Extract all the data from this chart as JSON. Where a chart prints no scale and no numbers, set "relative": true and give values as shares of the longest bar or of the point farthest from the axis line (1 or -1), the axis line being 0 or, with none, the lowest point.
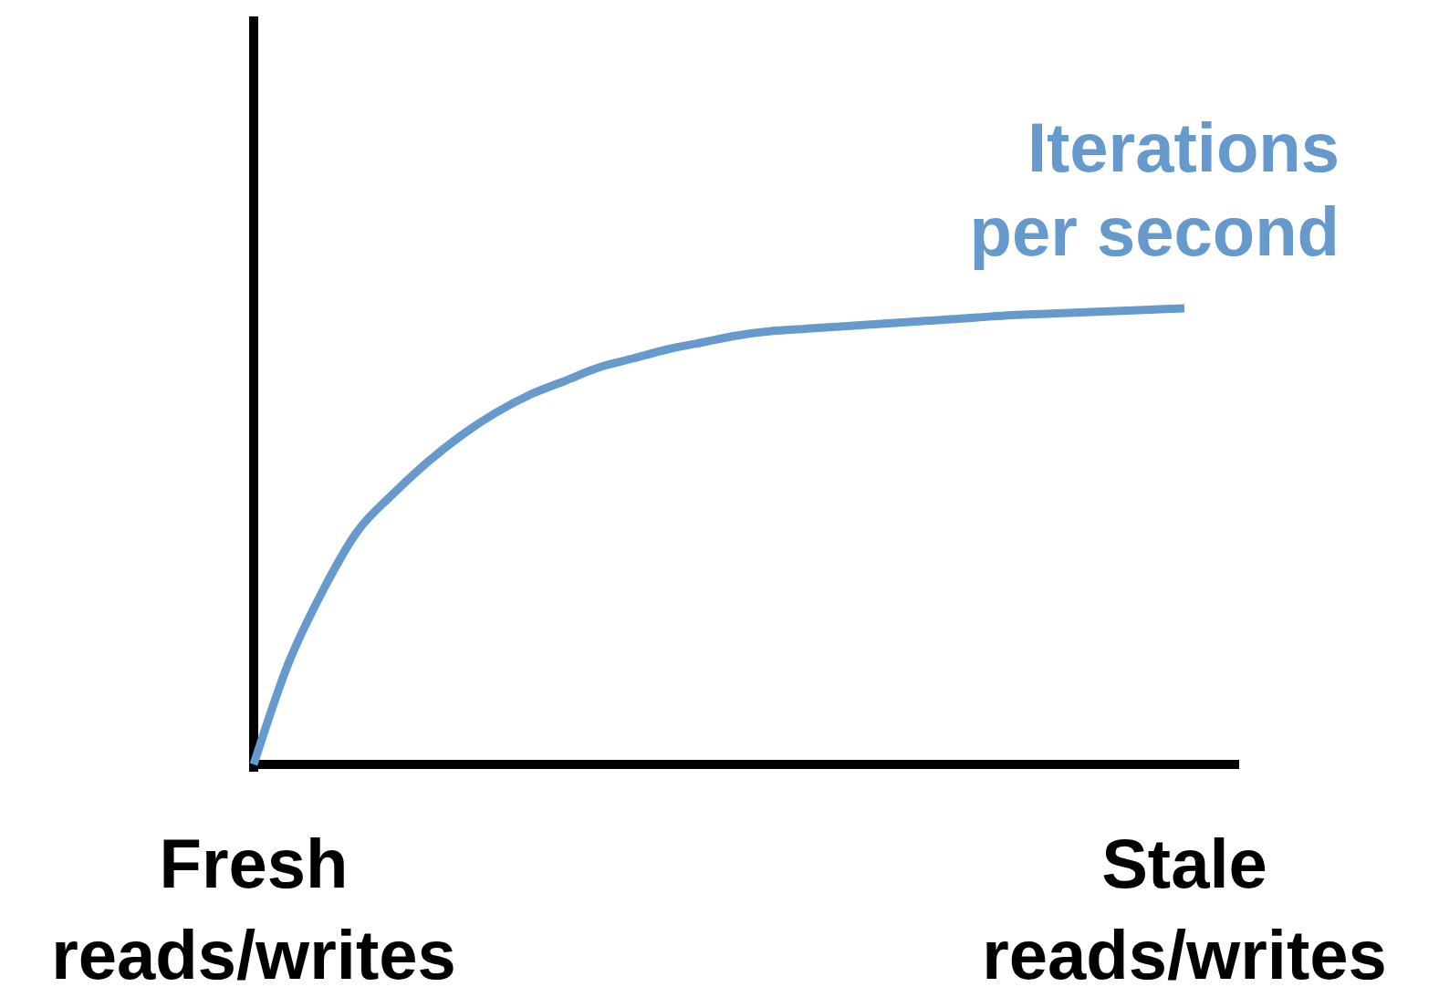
{
  "chart_data": {
    "type": "line",
    "relative": true,
    "categories": [
      "Fresh reads/writes",
      null,
      null,
      null,
      null,
      null,
      null,
      null,
      null,
      null,
      null,
      null,
      null,
      null,
      null,
      null,
      null,
      null,
      null,
      null,
      null,
      null,
      null,
      null,
      null,
      null,
      null,
      "Stale reads/writes"
    ],
    "series": [
      {
        "name": "Iterations per second",
        "color": "#6699cc",
        "values": [
          0,
          0.22,
          0.38,
          0.51,
          0.59,
          0.66,
          0.72,
          0.77,
          0.81,
          0.84,
          0.87,
          0.89,
          0.91,
          0.925,
          0.94,
          0.95,
          0.955,
          0.96,
          0.965,
          0.97,
          0.975,
          0.98,
          0.985,
          0.988,
          0.991,
          0.994,
          0.997,
          1
        ]
      }
    ]
  }
}
